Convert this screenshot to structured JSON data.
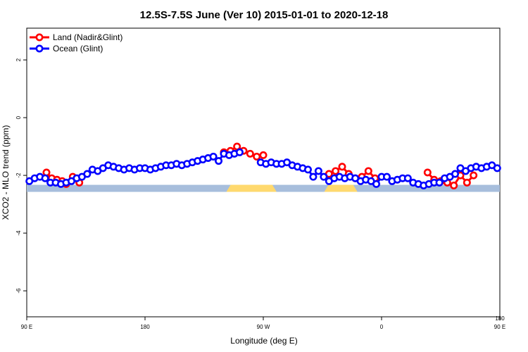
{
  "chart_data": {
    "type": "line",
    "title": "12.5S-7.5S June (Ver 10)   2015-01-01 to 2020-12-18",
    "xlabel": "Longitude (deg E)",
    "ylabel": "XCO2 - MLO trend (ppm)",
    "xlim": [
      0,
      360
    ],
    "ylim": [
      -6.9,
      3.1
    ],
    "x_ticks": [
      {
        "value": 0,
        "label": "90 E"
      },
      {
        "value": 90,
        "label": "180"
      },
      {
        "value": 180,
        "label": "90 W"
      },
      {
        "value": 270,
        "label": "0"
      },
      {
        "value": 360,
        "label": "90 E"
      }
    ],
    "x_ticks_upper": [
      {
        "value": 360,
        "label": "180"
      }
    ],
    "y_ticks": [
      {
        "value": 2,
        "label": "2"
      },
      {
        "value": 0,
        "label": "0"
      },
      {
        "value": -2,
        "label": "-2"
      },
      {
        "value": -4,
        "label": "-4"
      },
      {
        "value": -6,
        "label": "-6"
      }
    ],
    "land_strip": {
      "y": -2.45,
      "ocean_color": "#a7bedc",
      "land_color": "#ffd96e",
      "land_segments": [
        [
          153.5,
          188.5
        ],
        [
          228,
          250
        ]
      ]
    },
    "legend_position": "top-left",
    "series": [
      {
        "name": "Land (Nadir&Glint)",
        "color": "#ff0000",
        "x": [
          15,
          19,
          23,
          27,
          30,
          35,
          40,
          150,
          155,
          160,
          165,
          170,
          175,
          180,
          230,
          235,
          240,
          245,
          250,
          255,
          260,
          265,
          305,
          310,
          315,
          320,
          325,
          330,
          335,
          340
        ],
        "y": [
          -1.9,
          -2.1,
          -2.15,
          -2.2,
          -2.3,
          -2.05,
          -2.25,
          -1.2,
          -1.15,
          -1.0,
          -1.15,
          -1.25,
          -1.35,
          -1.3,
          -1.95,
          -1.85,
          -1.7,
          -1.95,
          -2.1,
          -2.05,
          -1.85,
          -2.1,
          -1.9,
          -2.15,
          -2.2,
          -2.25,
          -2.35,
          -2.0,
          -2.25,
          -2.0
        ]
      },
      {
        "name": "Ocean (Glint)",
        "color": "#0000ff",
        "x": [
          2,
          6,
          10,
          14,
          18,
          22,
          26,
          30,
          34,
          38,
          42,
          46,
          50,
          54,
          58,
          62,
          66,
          70,
          74,
          78,
          82,
          86,
          90,
          94,
          98,
          102,
          106,
          110,
          114,
          118,
          122,
          126,
          130,
          134,
          138,
          142,
          146,
          150,
          154,
          158,
          162,
          178,
          182,
          186,
          190,
          194,
          198,
          202,
          206,
          210,
          214,
          218,
          222,
          226,
          230,
          234,
          238,
          242,
          246,
          250,
          254,
          258,
          262,
          266,
          270,
          274,
          278,
          282,
          286,
          290,
          294,
          298,
          302,
          306,
          310,
          314,
          318,
          322,
          326,
          330,
          334,
          338,
          342,
          346,
          350,
          354,
          358
        ],
        "y": [
          -2.2,
          -2.1,
          -2.05,
          -2.1,
          -2.25,
          -2.25,
          -2.3,
          -2.25,
          -2.2,
          -2.1,
          -2.05,
          -1.95,
          -1.8,
          -1.85,
          -1.75,
          -1.65,
          -1.7,
          -1.75,
          -1.8,
          -1.75,
          -1.8,
          -1.75,
          -1.75,
          -1.8,
          -1.75,
          -1.7,
          -1.65,
          -1.65,
          -1.6,
          -1.65,
          -1.6,
          -1.55,
          -1.5,
          -1.45,
          -1.4,
          -1.35,
          -1.5,
          -1.25,
          -1.3,
          -1.25,
          -1.2,
          -1.55,
          -1.6,
          -1.55,
          -1.6,
          -1.6,
          -1.55,
          -1.65,
          -1.7,
          -1.75,
          -1.8,
          -2.05,
          -1.85,
          -2.05,
          -2.2,
          -2.1,
          -2.05,
          -2.1,
          -2.05,
          -2.1,
          -2.2,
          -2.15,
          -2.2,
          -2.3,
          -2.05,
          -2.05,
          -2.2,
          -2.15,
          -2.1,
          -2.1,
          -2.25,
          -2.3,
          -2.35,
          -2.3,
          -2.25,
          -2.25,
          -2.1,
          -2.05,
          -1.95,
          -1.75,
          -1.85,
          -1.75,
          -1.7,
          -1.75,
          -1.7,
          -1.65,
          -1.75
        ]
      }
    ]
  }
}
